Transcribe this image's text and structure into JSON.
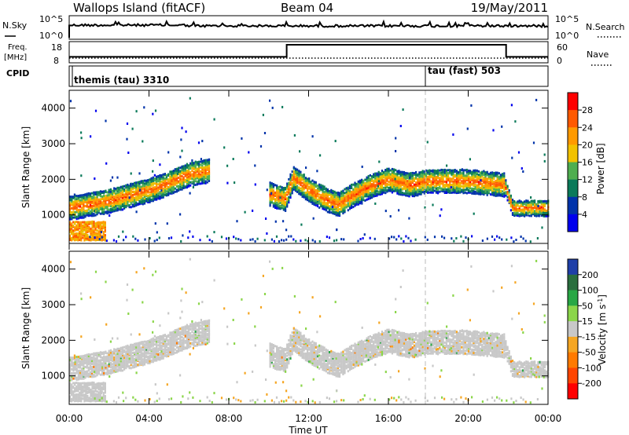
{
  "header": {
    "station": "Wallops Island (fitACF)",
    "beam": "Beam 04",
    "date": "19/May/2011"
  },
  "strip_labels": {
    "nsky": "N.Sky",
    "nsky_top": "10^5",
    "nsky_bottom": "10^0",
    "nsearch": "N.Search",
    "nsearch_top": "10^5",
    "nsearch_bottom": "10^0",
    "freq_line1": "Freq.",
    "freq_line2": "[MHz]",
    "freq_top": "18",
    "freq_bottom": "8",
    "nave": "Nave",
    "nave_top": "60",
    "nave_bottom": "0",
    "cpid": "CPID",
    "cpid_mode1": "themis (tau) 3310",
    "cpid_mode2": "tau (fast) 503"
  },
  "colorbars": {
    "power": {
      "label": "Power [dB]",
      "ticks": [
        "28",
        "24",
        "20",
        "16",
        "12",
        "8",
        "4"
      ],
      "colors": [
        "#ff0000",
        "#ff5a00",
        "#ff9a00",
        "#f2c200",
        "#4fae50",
        "#0a7a5a",
        "#0033aa",
        "#0000ee"
      ]
    },
    "velocity": {
      "label": "Velocity [m s",
      "label_sup": "-1",
      "label_end": "]",
      "ticks": [
        "200",
        "100",
        "50",
        "15",
        "-15",
        "-50",
        "-100",
        "-200"
      ],
      "colors": [
        "#1f3fa8",
        "#2a6e3e",
        "#28a745",
        "#8bd64a",
        "#c8c8c8",
        "#f5a623",
        "#ff7a00",
        "#ff4500",
        "#ff0000"
      ]
    }
  },
  "chart_data": [
    {
      "type": "heatmap",
      "title": "",
      "quantity": "Power",
      "xlabel": "Time UT",
      "ylabel": "Slant Range [km]",
      "xlim": [
        "00:00",
        "24:00"
      ],
      "ylim": [
        200,
        4500
      ],
      "x_ticks": [
        "00:00",
        "04:00",
        "08:00",
        "12:00",
        "16:00",
        "20:00",
        "00:00"
      ],
      "y_ticks": [
        "1000",
        "2000",
        "3000",
        "4000"
      ],
      "colorscale_db": [
        0,
        30
      ],
      "echo_band_center_km": {
        "hours": [
          0,
          1,
          2,
          3,
          4,
          5,
          6,
          7,
          8,
          9,
          10,
          10.8,
          11.2,
          12,
          13,
          13.5,
          14,
          15,
          16,
          17,
          18,
          19,
          20,
          21,
          21.8,
          22.2,
          23,
          24
        ],
        "range": [
          1200,
          1300,
          1400,
          1550,
          1700,
          1900,
          2150,
          2250,
          null,
          null,
          1600,
          1450,
          2050,
          1700,
          1400,
          1300,
          1500,
          1800,
          2000,
          1850,
          1950,
          1950,
          1950,
          1900,
          1850,
          1200,
          1200,
          1200
        ]
      },
      "near_range_echoes": {
        "hours": [
          0,
          1.8
        ],
        "range_km": [
          300,
          800
        ],
        "power_db": 26
      },
      "mode_change_time": "18:00"
    },
    {
      "type": "heatmap",
      "title": "",
      "quantity": "Velocity",
      "xlabel": "Time UT",
      "ylabel": "Slant Range [km]",
      "xlim": [
        "00:00",
        "24:00"
      ],
      "ylim": [
        200,
        4500
      ],
      "x_ticks": [
        "00:00",
        "04:00",
        "08:00",
        "12:00",
        "16:00",
        "20:00",
        "00:00"
      ],
      "y_ticks": [
        "1000",
        "2000",
        "3000",
        "4000"
      ],
      "colorscale_ms": [
        -200,
        200
      ],
      "dominant_velocity_range_ms": [
        -15,
        15
      ]
    },
    {
      "type": "line",
      "title": "",
      "quantity": "Freq",
      "units": "MHz",
      "x_hours": [
        0,
        10.9,
        10.9,
        21.9,
        21.9,
        24
      ],
      "y": [
        10.8,
        10.8,
        16.5,
        16.5,
        10.8,
        10.8
      ],
      "ylim": [
        8,
        18
      ]
    }
  ],
  "axes": {
    "xlabel": "Time UT",
    "x_ticks": [
      "00:00",
      "04:00",
      "08:00",
      "12:00",
      "16:00",
      "20:00",
      "00:00"
    ],
    "ylabel": "Slant Range [km]",
    "y_ticks": [
      "1000",
      "2000",
      "3000",
      "4000"
    ]
  }
}
